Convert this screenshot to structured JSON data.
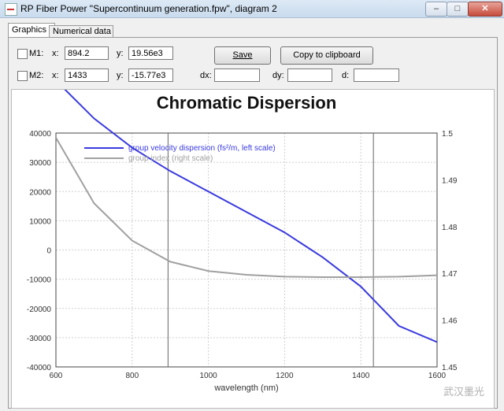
{
  "window": {
    "title": "RP Fiber Power \"Supercontinuum generation.fpw\", diagram 2",
    "min_label": "–",
    "max_label": "□",
    "close_label": "✕"
  },
  "tabs": [
    {
      "label": "Graphics",
      "active": true
    },
    {
      "label": "Numerical data",
      "active": false
    }
  ],
  "markers": {
    "m1": {
      "label": "M1:",
      "x_label": "x:",
      "x_value": "894.2",
      "y_label": "y:",
      "y_value": "19.56e3"
    },
    "m2": {
      "label": "M2:",
      "x_label": "x:",
      "x_value": "1433",
      "y_label": "y:",
      "y_value": "-15.77e3"
    },
    "dx_label": "dx:",
    "dx_value": "",
    "dy_label": "dy:",
    "dy_value": "",
    "d_label": "d:",
    "d_value": ""
  },
  "buttons": {
    "save_label": "Save",
    "copy_label": "Copy to clipboard"
  },
  "watermark_text": "武汉墨光",
  "chart_data": {
    "type": "line",
    "title": "Chromatic Dispersion",
    "xlabel": "wavelength (nm)",
    "xlim": [
      600,
      1600
    ],
    "x_ticks": [
      "600",
      "800",
      "1000",
      "1200",
      "1400",
      "1600"
    ],
    "y_left_lim": [
      -40000,
      40000
    ],
    "y_left_ticks": [
      "40000",
      "30000",
      "20000",
      "10000",
      "0",
      "-10000",
      "-20000",
      "-30000",
      "-40000"
    ],
    "y_right_lim": [
      1.45,
      1.5
    ],
    "y_right_ticks": [
      "1.5",
      "1.49",
      "1.48",
      "1.47",
      "1.46",
      "1.45"
    ],
    "grid": true,
    "legend_position": "top-left",
    "series": [
      {
        "name": "group velocity dispersion (fs²/m, left scale)",
        "color": "#3a3ae0",
        "axis": "left",
        "x": [
          600,
          700,
          800,
          900,
          1000,
          1100,
          1200,
          1300,
          1400,
          1500,
          1600
        ],
        "y": [
          58000,
          45000,
          35000,
          27000,
          20000,
          13000,
          6000,
          -2500,
          -12500,
          -26000,
          -31500
        ]
      },
      {
        "name": "group index (right scale)",
        "color": "#a0a0a0",
        "axis": "right",
        "x": [
          600,
          700,
          800,
          900,
          1000,
          1100,
          1200,
          1300,
          1400,
          1500,
          1600
        ],
        "y": [
          1.499,
          1.485,
          1.477,
          1.4725,
          1.4705,
          1.4697,
          1.4693,
          1.4692,
          1.4692,
          1.4693,
          1.4696
        ]
      }
    ],
    "markers": [
      {
        "name": "M1",
        "x": 894.2
      },
      {
        "name": "M2",
        "x": 1433
      }
    ]
  }
}
